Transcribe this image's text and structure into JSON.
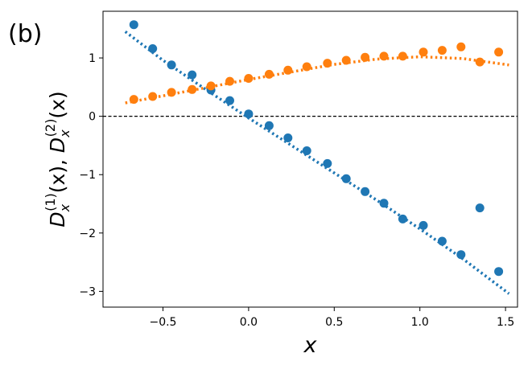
{
  "panel_label": "(b)",
  "chart_data": {
    "type": "scatter",
    "title": "",
    "xlabel": "x",
    "ylabel": "D_x^(1)(x), D_x^(2)(x)",
    "ylabel_parts": {
      "d1": "D",
      "sub1": "x",
      "sup1": "(1)",
      "arg1": "(x), ",
      "d2": "D",
      "sub2": "x",
      "sup2": "(2)",
      "arg2": "(x)"
    },
    "xlim": [
      -0.85,
      1.57
    ],
    "ylim": [
      -3.27,
      1.8
    ],
    "xticks": [
      -0.5,
      0.0,
      0.5,
      1.0,
      1.5
    ],
    "xtick_labels": [
      "−0.5",
      "0.0",
      "0.5",
      "1.0",
      "1.5"
    ],
    "yticks": [
      -3,
      -2,
      -1,
      0,
      1
    ],
    "ytick_labels": [
      "−3",
      "−2",
      "−1",
      "0",
      "1"
    ],
    "hline": {
      "y": 0,
      "style": "dashed",
      "color": "#000000"
    },
    "series": [
      {
        "kind": "points",
        "color": "#1f77b4",
        "x": [
          -0.67,
          -0.56,
          -0.45,
          -0.33,
          -0.22,
          -0.11,
          0.0,
          0.12,
          0.23,
          0.34,
          0.46,
          0.57,
          0.68,
          0.79,
          0.9,
          1.02,
          1.13,
          1.24,
          1.35,
          1.46
        ],
        "y": [
          1.57,
          1.16,
          0.88,
          0.71,
          0.45,
          0.27,
          0.04,
          -0.16,
          -0.37,
          -0.59,
          -0.81,
          -1.07,
          -1.29,
          -1.49,
          -1.76,
          -1.87,
          -2.14,
          -2.37,
          -1.57,
          -2.66
        ]
      },
      {
        "kind": "points",
        "color": "#ff7f0e",
        "x": [
          -0.67,
          -0.56,
          -0.45,
          -0.33,
          -0.22,
          -0.11,
          0.0,
          0.12,
          0.23,
          0.34,
          0.46,
          0.57,
          0.68,
          0.79,
          0.9,
          1.02,
          1.13,
          1.24,
          1.35,
          1.46
        ],
        "y": [
          0.29,
          0.34,
          0.41,
          0.46,
          0.52,
          0.6,
          0.65,
          0.72,
          0.79,
          0.85,
          0.91,
          0.96,
          1.01,
          1.03,
          1.03,
          1.1,
          1.13,
          1.19,
          0.93,
          1.1
        ]
      },
      {
        "kind": "fit",
        "color": "#1f77b4",
        "x": [
          -0.72,
          -0.5,
          -0.25,
          0.0,
          0.25,
          0.5,
          0.75,
          1.0,
          1.25,
          1.52
        ],
        "y": [
          1.45,
          0.96,
          0.46,
          -0.03,
          -0.5,
          -0.97,
          -1.44,
          -1.93,
          -2.44,
          -3.04
        ]
      },
      {
        "kind": "fit",
        "color": "#ff7f0e",
        "x": [
          -0.72,
          -0.5,
          -0.25,
          0.0,
          0.25,
          0.5,
          0.75,
          1.0,
          1.25,
          1.52
        ],
        "y": [
          0.23,
          0.35,
          0.49,
          0.63,
          0.76,
          0.89,
          0.98,
          1.02,
          0.99,
          0.88
        ]
      }
    ]
  }
}
